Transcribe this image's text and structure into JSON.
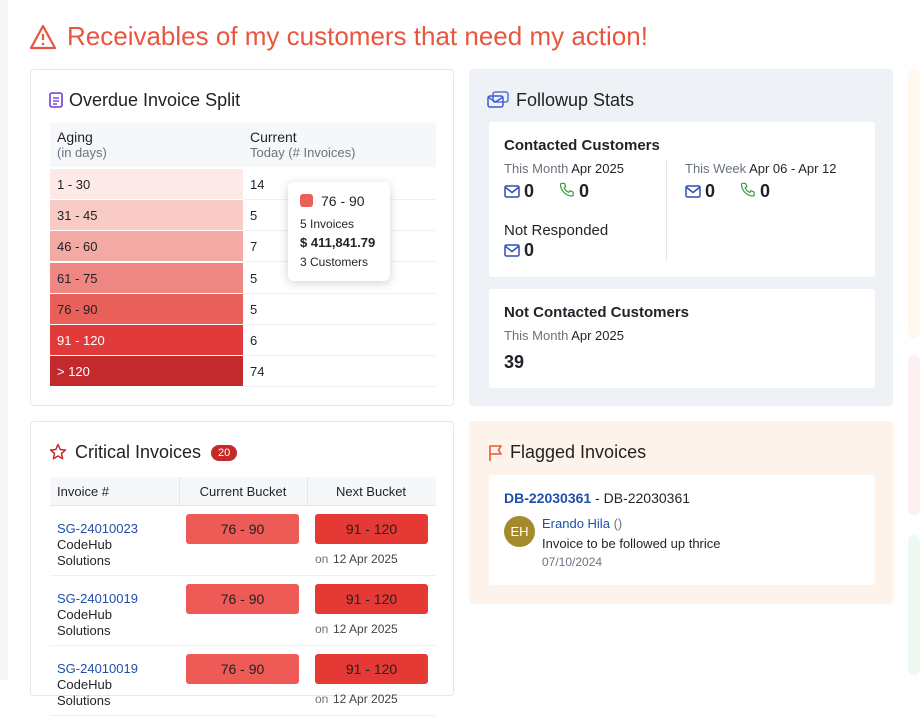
{
  "header": {
    "title": "Receivables of my customers that need my action!"
  },
  "overdue": {
    "title": "Overdue Invoice Split",
    "col1": {
      "title": "Aging",
      "sub": "(in days)"
    },
    "col2": {
      "title": "Current",
      "sub": "Today (# Invoices)"
    },
    "rows": [
      {
        "bucket": "1 - 30",
        "count": 14
      },
      {
        "bucket": "31 - 45",
        "count": 5
      },
      {
        "bucket": "46 - 60",
        "count": 7
      },
      {
        "bucket": "61 - 75",
        "count": 5
      },
      {
        "bucket": "76 - 90",
        "count": 5
      },
      {
        "bucket": "91 - 120",
        "count": 6
      },
      {
        "bucket": "> 120",
        "count": 74
      }
    ],
    "tooltip": {
      "bucket": "76 - 90",
      "invoices": "5 Invoices",
      "amount": "$ 411,841.79",
      "customers": "3 Customers"
    }
  },
  "followup": {
    "title": "Followup Stats",
    "contacted": {
      "title": "Contacted Customers",
      "month": {
        "label": "This Month",
        "value": "Apr 2025",
        "emails": 0,
        "calls": 0
      },
      "week": {
        "label": "This Week",
        "value": "Apr 06 - Apr 12",
        "emails": 0,
        "calls": 0
      },
      "not_responded": {
        "title": "Not Responded",
        "emails": 0
      }
    },
    "not_contacted": {
      "title": "Not Contacted Customers",
      "label": "This Month",
      "value": "Apr 2025",
      "count": 39
    }
  },
  "critical": {
    "title": "Critical Invoices",
    "badge": 20,
    "columns": [
      "Invoice #",
      "Current Bucket",
      "Next Bucket"
    ],
    "rows": [
      {
        "invoice": "SG-24010023",
        "customer": "CodeHub Solutions",
        "current": "76 - 90",
        "next": "91 - 120",
        "prefix": "on",
        "date": "12 Apr 2025"
      },
      {
        "invoice": "SG-24010019",
        "customer": "CodeHub Solutions",
        "current": "76 - 90",
        "next": "91 - 120",
        "prefix": "on",
        "date": "12 Apr 2025"
      },
      {
        "invoice": "SG-24010019",
        "customer": "CodeHub Solutions",
        "current": "76 - 90",
        "next": "91 - 120",
        "prefix": "on",
        "date": "12 Apr 2025"
      }
    ]
  },
  "flagged": {
    "title": "Flagged Invoices",
    "item": {
      "invoice": "DB-22030361",
      "separator": "-",
      "ref": "DB-22030361",
      "initials": "EH",
      "user": "Erando Hila",
      "user_meta": "()",
      "note": "Invoice to be followed up thrice",
      "date": "07/10/2024"
    }
  }
}
